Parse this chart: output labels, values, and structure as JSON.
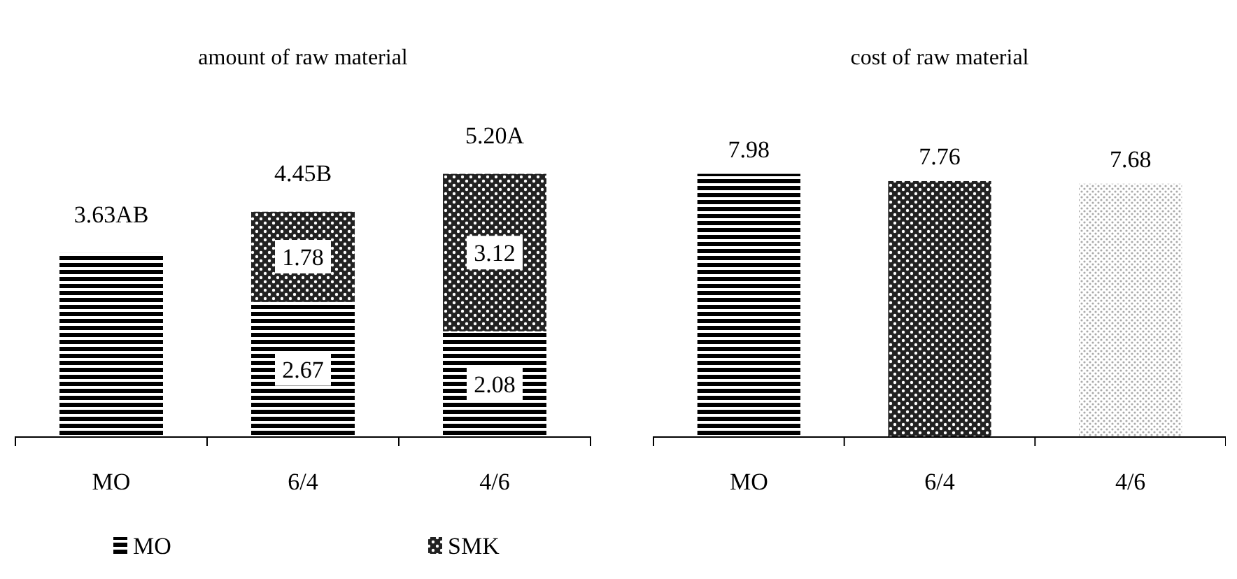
{
  "chart_data": [
    {
      "type": "bar",
      "title": "amount of raw material",
      "categories": [
        "MO",
        "6/4",
        "4/6"
      ],
      "stacked": true,
      "legend": "bottom",
      "series": [
        {
          "name": "MO",
          "color": "#000000",
          "values": [
            3.63,
            2.67,
            2.08
          ],
          "value_labels": [
            null,
            "2.67",
            "2.08"
          ]
        },
        {
          "name": "SMK",
          "color": "#222222",
          "values": [
            null,
            1.78,
            3.12
          ],
          "value_labels": [
            null,
            "1.78",
            "3.12"
          ]
        }
      ],
      "totals": [
        "3.63AB",
        "4.45B",
        "5.20A"
      ]
    },
    {
      "type": "bar",
      "title": "cost of raw material",
      "categories": [
        "MO",
        "6/4",
        "4/6"
      ],
      "values": [
        7.98,
        7.76,
        7.68
      ],
      "colors": [
        "#000000",
        "#222222",
        "#aaaaaa"
      ],
      "data_labels": true
    }
  ]
}
